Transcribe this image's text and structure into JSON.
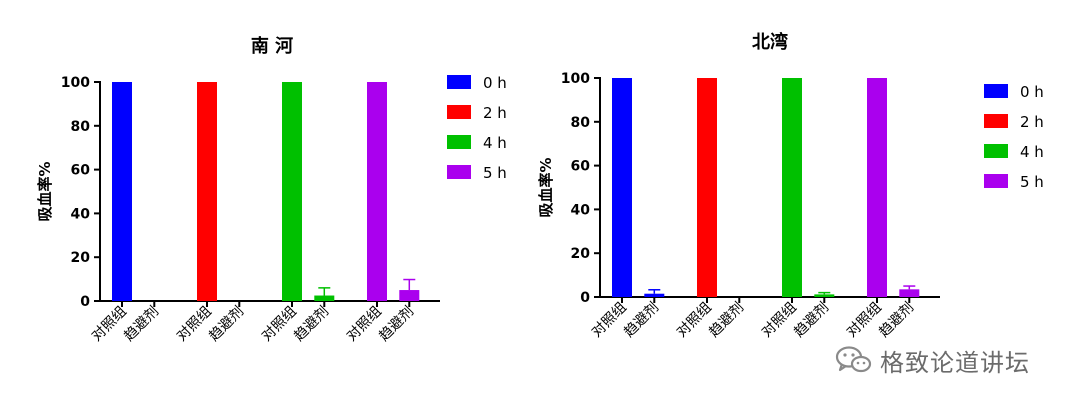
{
  "chart_data": [
    {
      "type": "bar",
      "title": "南 河",
      "ylabel": "吸血率%",
      "xlabel": "",
      "ylim": [
        0,
        100
      ],
      "yticks": [
        0,
        20,
        40,
        60,
        80,
        100
      ],
      "groups": [
        "0 h",
        "2 h",
        "4 h",
        "5 h"
      ],
      "categories": [
        "对照组",
        "趋避剂"
      ],
      "series": [
        {
          "name": "0 h",
          "color": "#0000ff",
          "values": [
            100,
            0
          ],
          "errors": [
            0,
            0
          ]
        },
        {
          "name": "2 h",
          "color": "#ff0000",
          "values": [
            100,
            0
          ],
          "errors": [
            0,
            0
          ]
        },
        {
          "name": "4 h",
          "color": "#00c000",
          "values": [
            100,
            2.5
          ],
          "errors": [
            0,
            3.5
          ]
        },
        {
          "name": "5 h",
          "color": "#aa00ee",
          "values": [
            100,
            5
          ],
          "errors": [
            0,
            4.8
          ]
        }
      ],
      "legend": "right"
    },
    {
      "type": "bar",
      "title": "北湾",
      "ylabel": "吸血率%",
      "xlabel": "",
      "ylim": [
        0,
        100
      ],
      "yticks": [
        0,
        20,
        40,
        60,
        80,
        100
      ],
      "groups": [
        "0 h",
        "2 h",
        "4 h",
        "5 h"
      ],
      "categories": [
        "对照组",
        "趋避剂"
      ],
      "series": [
        {
          "name": "0 h",
          "color": "#0000ff",
          "values": [
            100,
            1.5
          ],
          "errors": [
            0,
            1.8
          ]
        },
        {
          "name": "2 h",
          "color": "#ff0000",
          "values": [
            100,
            0
          ],
          "errors": [
            0,
            0
          ]
        },
        {
          "name": "4 h",
          "color": "#00c000",
          "values": [
            100,
            1.2
          ],
          "errors": [
            0,
            0.8
          ]
        },
        {
          "name": "5 h",
          "color": "#aa00ee",
          "values": [
            100,
            3.5
          ],
          "errors": [
            0,
            1.5
          ]
        }
      ],
      "legend": "right"
    }
  ],
  "watermark": {
    "text": "格致论道讲坛",
    "icon": "wechat-icon"
  }
}
